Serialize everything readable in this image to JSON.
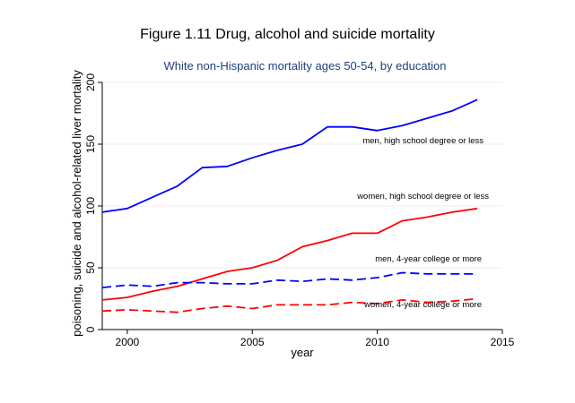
{
  "figure_title": "Figure 1.11  Drug, alcohol and suicide mortality",
  "chart_data": {
    "type": "line",
    "title": "White non-Hispanic mortality ages 50-54, by education",
    "xlabel": "year",
    "ylabel": "poisoning, suicide and alcohol-related liver mortality",
    "xlim": [
      1999,
      2015
    ],
    "ylim": [
      0,
      200
    ],
    "xticks": [
      2000,
      2005,
      2010,
      2015
    ],
    "yticks": [
      0,
      50,
      100,
      150,
      200
    ],
    "grid": "horizontal",
    "x": [
      1999,
      2000,
      2001,
      2002,
      2003,
      2004,
      2005,
      2006,
      2007,
      2008,
      2009,
      2010,
      2011,
      2012,
      2013,
      2014
    ],
    "series": [
      {
        "name": "men, high school degree or less",
        "color": "#0000ff",
        "dash": "solid",
        "values": [
          95,
          98,
          107,
          116,
          131,
          132,
          139,
          145,
          150,
          164,
          164,
          161,
          165,
          171,
          177,
          186
        ]
      },
      {
        "name": "women, high school degree or less",
        "color": "#ff0000",
        "dash": "solid",
        "values": [
          24,
          26,
          31,
          35,
          41,
          47,
          50,
          56,
          67,
          72,
          78,
          78,
          88,
          91,
          95,
          98
        ]
      },
      {
        "name": "men, 4-year college or more",
        "color": "#0000ff",
        "dash": "dashed",
        "values": [
          34,
          36,
          35,
          38,
          38,
          37,
          37,
          40,
          39,
          41,
          40,
          42,
          46,
          45,
          45,
          45
        ]
      },
      {
        "name": "women, 4-year college or more",
        "color": "#ff0000",
        "dash": "dashed",
        "values": [
          15,
          16,
          15,
          14,
          17,
          19,
          17,
          20,
          20,
          20,
          22,
          21,
          24,
          22,
          23,
          25
        ]
      }
    ]
  }
}
